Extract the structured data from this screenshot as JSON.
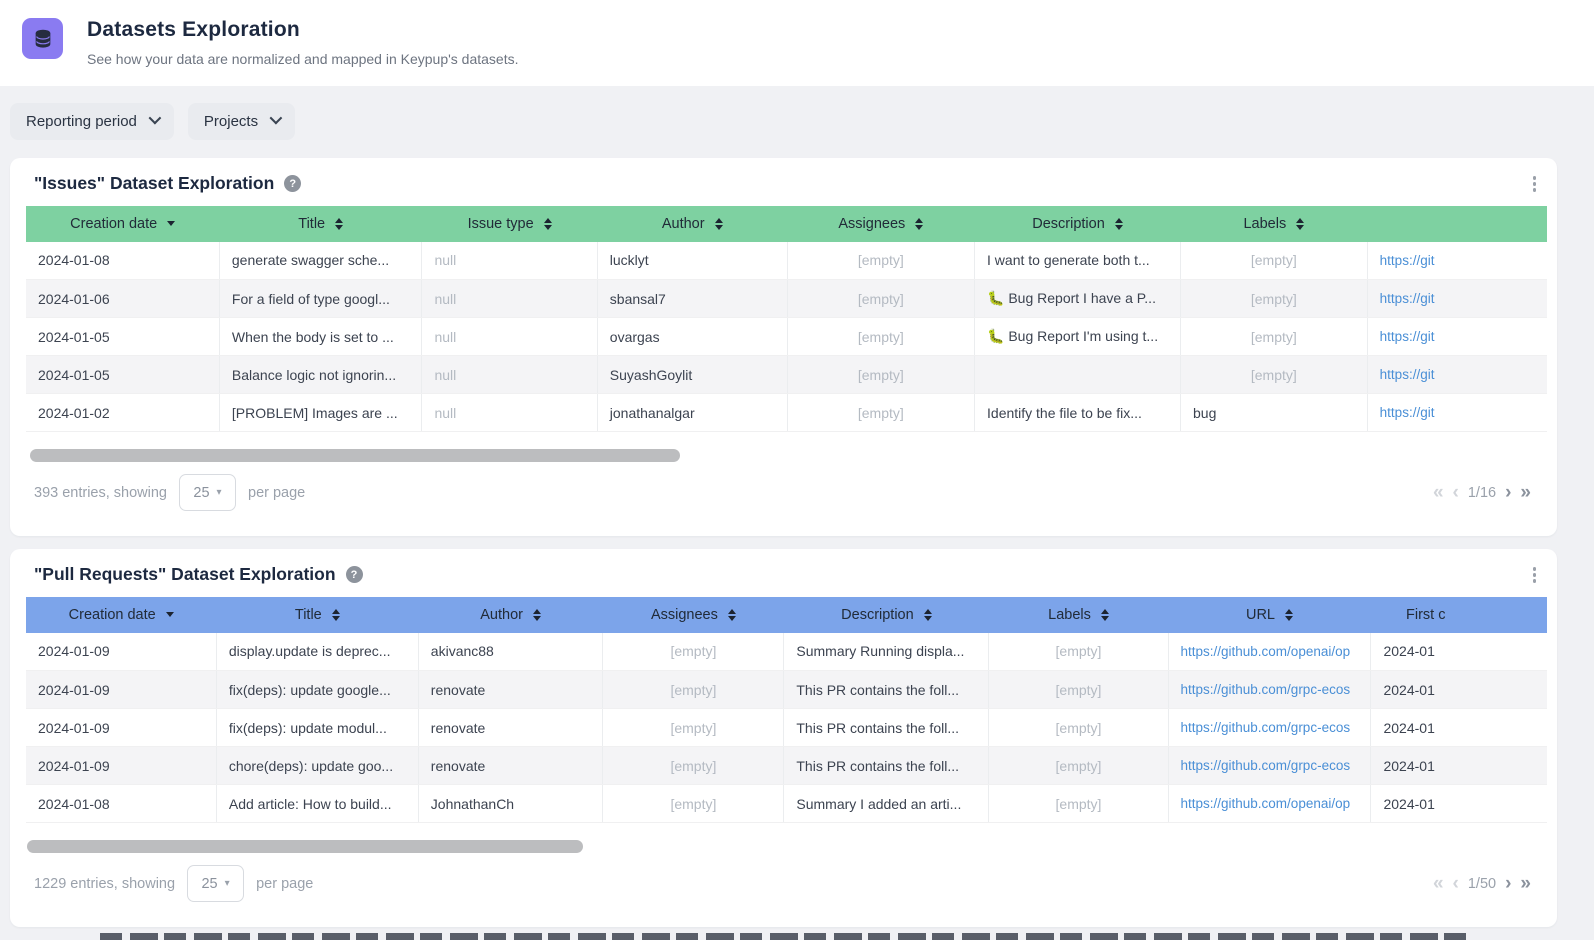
{
  "header": {
    "title": "Datasets Exploration",
    "subtitle": "See how your data are normalized and mapped in Keypup's datasets."
  },
  "filters": [
    {
      "label": "Reporting period"
    },
    {
      "label": "Projects"
    }
  ],
  "colors": {
    "accent_purple": "#8a7bf1",
    "issues_header_green": "#7ed1a1",
    "pulls_header_blue": "#7ca4ea",
    "link_blue": "#4a8fd6"
  },
  "icons": {
    "first_page": "«",
    "prev_page": "‹",
    "next_page": "›",
    "last_page": "»",
    "caret_down": "▾"
  },
  "issues_table": {
    "title": "\"Issues\" Dataset Exploration",
    "columns": [
      {
        "label": "Creation date",
        "sort": "desc"
      },
      {
        "label": "Title",
        "sort": "both"
      },
      {
        "label": "Issue type",
        "sort": "both"
      },
      {
        "label": "Author",
        "sort": "both"
      },
      {
        "label": "Assignees",
        "sort": "both"
      },
      {
        "label": "Description",
        "sort": "both"
      },
      {
        "label": "Labels",
        "sort": "both"
      },
      {
        "label": "",
        "sort": "none"
      }
    ],
    "rows": [
      [
        "2024-01-08",
        "generate swagger sche...",
        "null",
        "lucklyt",
        "[empty]",
        "I want to generate both t...",
        "[empty]",
        "https://git"
      ],
      [
        "2024-01-06",
        "For a field of type googl...",
        "null",
        "sbansal7",
        "[empty]",
        "🐛 Bug Report I have a P...",
        "[empty]",
        "https://git"
      ],
      [
        "2024-01-05",
        "When the body is set to ...",
        "null",
        "ovargas",
        "[empty]",
        "🐛 Bug Report I'm using t...",
        "[empty]",
        "https://git"
      ],
      [
        "2024-01-05",
        "Balance logic not ignorin...",
        "null",
        "SuyashGoylit",
        "[empty]",
        "",
        "[empty]",
        "https://git"
      ],
      [
        "2024-01-02",
        "[PROBLEM] Images are ...",
        "null",
        "jonathanalgar",
        "[empty]",
        "Identify the file to be fix...",
        "bug",
        "https://git"
      ]
    ],
    "footer": {
      "entries_label": "393 entries, showing",
      "per_page_value": "25",
      "per_page_suffix": "per page",
      "page_indicator": "1/16"
    }
  },
  "pulls_table": {
    "title": "\"Pull Requests\" Dataset Exploration",
    "columns": [
      {
        "label": "Creation date",
        "sort": "desc"
      },
      {
        "label": "Title",
        "sort": "both"
      },
      {
        "label": "Author",
        "sort": "both"
      },
      {
        "label": "Assignees",
        "sort": "both"
      },
      {
        "label": "Description",
        "sort": "both"
      },
      {
        "label": "Labels",
        "sort": "both"
      },
      {
        "label": "URL",
        "sort": "both"
      },
      {
        "label": "First c",
        "sort": "none"
      }
    ],
    "rows": [
      [
        "2024-01-09",
        "display.update is deprec...",
        "akivanc88",
        "[empty]",
        "Summary Running displa...",
        "[empty]",
        "https://github.com/openai/op",
        "2024-01"
      ],
      [
        "2024-01-09",
        "fix(deps): update google...",
        "renovate",
        "[empty]",
        "This PR contains the foll...",
        "[empty]",
        "https://github.com/grpc-ecos",
        "2024-01"
      ],
      [
        "2024-01-09",
        "fix(deps): update modul...",
        "renovate",
        "[empty]",
        "This PR contains the foll...",
        "[empty]",
        "https://github.com/grpc-ecos",
        "2024-01"
      ],
      [
        "2024-01-09",
        "chore(deps): update goo...",
        "renovate",
        "[empty]",
        "This PR contains the foll...",
        "[empty]",
        "https://github.com/grpc-ecos",
        "2024-01"
      ],
      [
        "2024-01-08",
        "Add article: How to build...",
        "JohnathanCh",
        "[empty]",
        "Summary I added an arti...",
        "[empty]",
        "https://github.com/openai/op",
        "2024-01"
      ]
    ],
    "footer": {
      "entries_label": "1229 entries, showing",
      "per_page_value": "25",
      "per_page_suffix": "per page",
      "page_indicator": "1/50"
    }
  }
}
